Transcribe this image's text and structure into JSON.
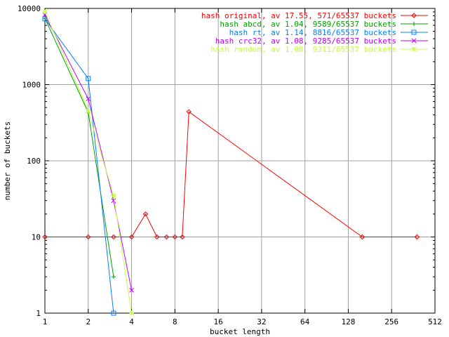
{
  "chart_data": {
    "type": "line",
    "xlabel": "bucket length",
    "ylabel": "number of buckets",
    "x_scale": "log2",
    "y_scale": "log10",
    "xlim": [
      1,
      512
    ],
    "ylim": [
      1,
      10000
    ],
    "x_ticks": [
      1,
      2,
      4,
      8,
      16,
      32,
      64,
      128,
      256,
      512
    ],
    "x_tick_labels": [
      "1",
      "2",
      "4",
      "8",
      "16",
      "32",
      "64",
      "128",
      "256",
      "512"
    ],
    "y_ticks": [
      1,
      10,
      100,
      1000,
      10000
    ],
    "y_tick_labels": [
      "1",
      "10",
      "100",
      "1000",
      "10000"
    ],
    "grid": true,
    "legend_position": "top-right",
    "series": [
      {
        "name": "hash original, av 17.55, 571/65537 buckets",
        "color": "#ff0000",
        "marker": "diamond",
        "x": [
          1,
          2,
          3,
          4,
          5,
          6,
          7,
          8,
          9,
          10,
          160,
          384
        ],
        "y": [
          10,
          10,
          10,
          10,
          20,
          10,
          10,
          10,
          10,
          440,
          10,
          10
        ]
      },
      {
        "name": "hash abcd, av 1.04, 9589/65537 buckets",
        "color": "#00a000",
        "marker": "plus",
        "x": [
          1,
          2,
          3
        ],
        "y": [
          7400,
          430,
          3
        ]
      },
      {
        "name": "hash rt, av 1.14, 8816/65537 buckets",
        "color": "#0080ff",
        "marker": "square",
        "x": [
          1,
          2,
          3
        ],
        "y": [
          7300,
          1200,
          1
        ]
      },
      {
        "name": "hash crc32, av 1.08, 9285/65537 buckets",
        "color": "#c000ff",
        "marker": "cross",
        "x": [
          1,
          2,
          3,
          4
        ],
        "y": [
          8200,
          650,
          30,
          2
        ]
      },
      {
        "name": "hash random, av 1.08, 9311/65537 buckets",
        "color": "#c0ff40",
        "marker": "star",
        "x": [
          1,
          2,
          3,
          4
        ],
        "y": [
          9000,
          450,
          35,
          1
        ]
      }
    ]
  }
}
